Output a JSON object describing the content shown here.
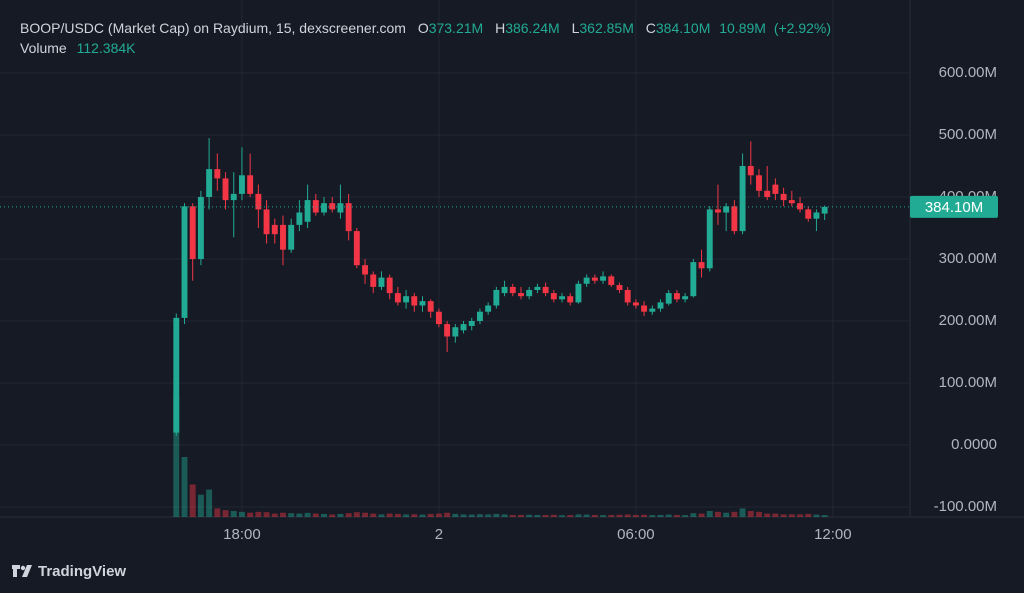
{
  "chart_data": {
    "type": "candlestick",
    "title": "BOOP/USDC (Market Cap) on Raydium, 15, dexscreener.com",
    "legend": {
      "open": {
        "key": "O",
        "value": 373210000.0,
        "label": "373.21M"
      },
      "high": {
        "key": "H",
        "value": 386240000.0,
        "label": "386.24M"
      },
      "low": {
        "key": "L",
        "value": 362850000.0,
        "label": "362.85M"
      },
      "close": {
        "key": "C",
        "value": 384100000.0,
        "label": "384.10M"
      },
      "change": {
        "value": 10890000.0,
        "label": "10.89M"
      },
      "change_percent": {
        "value": 2.92,
        "label": "(+2.92%)"
      }
    },
    "volume_legend": {
      "name": "Volume",
      "value": 112384,
      "label": "112.384K"
    },
    "last_price": {
      "value": 384100000.0,
      "label": "384.10M"
    },
    "x": [
      16,
      16.25,
      16.5,
      16.75,
      17,
      17.25,
      17.5,
      17.75,
      18,
      18.25,
      18.5,
      18.75,
      19,
      19.25,
      19.5,
      19.75,
      20,
      20.25,
      20.5,
      20.75,
      21,
      21.25,
      21.5,
      21.75,
      22,
      22.25,
      22.5,
      22.75,
      23,
      23.25,
      23.5,
      23.75,
      24,
      24.25,
      24.5,
      24.75,
      25,
      25.25,
      25.5,
      25.75,
      26,
      26.25,
      26.5,
      26.75,
      27,
      27.25,
      27.5,
      27.75,
      28,
      28.25,
      28.5,
      28.75,
      29,
      29.25,
      29.5,
      29.75,
      30,
      30.25,
      30.5,
      30.75,
      31,
      31.25,
      31.5,
      31.75,
      32,
      32.25,
      32.5,
      32.75,
      33,
      33.25,
      33.5,
      33.75,
      34,
      34.25,
      34.5,
      34.75,
      35,
      35.25,
      35.5,
      35.75
    ],
    "open": [
      20000000.0,
      205000000.0,
      385000000.0,
      300000000.0,
      400000000.0,
      445000000.0,
      430000000.0,
      395000000.0,
      405000000.0,
      435000000.0,
      405000000.0,
      380000000.0,
      355000000.0,
      355000000.0,
      315000000.0,
      355000000.0,
      360000000.0,
      395000000.0,
      375000000.0,
      390000000.0,
      375000000.0,
      390000000.0,
      345000000.0,
      290000000.0,
      275000000.0,
      255000000.0,
      270000000.0,
      245000000.0,
      230000000.0,
      240000000.0,
      225000000.0,
      232000000.0,
      215000000.0,
      195000000.0,
      175000000.0,
      185000000.0,
      192000000.0,
      200000000.0,
      215000000.0,
      225000000.0,
      245000000.0,
      255000000.0,
      245000000.0,
      240000000.0,
      250000000.0,
      255000000.0,
      245000000.0,
      235000000.0,
      240000000.0,
      230000000.0,
      260000000.0,
      270000000.0,
      265000000.0,
      272000000.0,
      258000000.0,
      250000000.0,
      230000000.0,
      225000000.0,
      215000000.0,
      220000000.0,
      228000000.0,
      245000000.0,
      235000000.0,
      240000000.0,
      295000000.0,
      285000000.0,
      380000000.0,
      375000000.0,
      385000000.0,
      345000000.0,
      450000000.0,
      435000000.0,
      410000000.0,
      420000000.0,
      405000000.0,
      395000000.0,
      390000000.0,
      380000000.0,
      365000000.0,
      373210000.0
    ],
    "high": [
      212000000.0,
      390000000.0,
      390000000.0,
      410000000.0,
      495000000.0,
      470000000.0,
      440000000.0,
      440000000.0,
      480000000.0,
      470000000.0,
      420000000.0,
      395000000.0,
      365000000.0,
      370000000.0,
      365000000.0,
      395000000.0,
      420000000.0,
      405000000.0,
      400000000.0,
      400000000.0,
      420000000.0,
      405000000.0,
      350000000.0,
      300000000.0,
      280000000.0,
      280000000.0,
      275000000.0,
      255000000.0,
      250000000.0,
      245000000.0,
      240000000.0,
      235000000.0,
      220000000.0,
      200000000.0,
      195000000.0,
      200000000.0,
      205000000.0,
      220000000.0,
      230000000.0,
      255000000.0,
      265000000.0,
      260000000.0,
      255000000.0,
      255000000.0,
      260000000.0,
      262000000.0,
      250000000.0,
      245000000.0,
      245000000.0,
      265000000.0,
      275000000.0,
      275000000.0,
      280000000.0,
      275000000.0,
      262000000.0,
      255000000.0,
      235000000.0,
      232000000.0,
      225000000.0,
      235000000.0,
      250000000.0,
      250000000.0,
      245000000.0,
      300000000.0,
      315000000.0,
      385000000.0,
      420000000.0,
      390000000.0,
      395000000.0,
      470000000.0,
      490000000.0,
      445000000.0,
      450000000.0,
      430000000.0,
      415000000.0,
      410000000.0,
      400000000.0,
      385000000.0,
      380000000.0,
      386240000.0
    ],
    "low": [
      15000000.0,
      195000000.0,
      265000000.0,
      290000000.0,
      380000000.0,
      410000000.0,
      380000000.0,
      335000000.0,
      395000000.0,
      400000000.0,
      350000000.0,
      325000000.0,
      325000000.0,
      290000000.0,
      310000000.0,
      345000000.0,
      350000000.0,
      370000000.0,
      370000000.0,
      375000000.0,
      365000000.0,
      330000000.0,
      285000000.0,
      260000000.0,
      245000000.0,
      250000000.0,
      235000000.0,
      225000000.0,
      220000000.0,
      215000000.0,
      215000000.0,
      205000000.0,
      190000000.0,
      150000000.0,
      165000000.0,
      180000000.0,
      185000000.0,
      195000000.0,
      210000000.0,
      220000000.0,
      240000000.0,
      240000000.0,
      235000000.0,
      235000000.0,
      245000000.0,
      240000000.0,
      230000000.0,
      230000000.0,
      225000000.0,
      228000000.0,
      255000000.0,
      260000000.0,
      260000000.0,
      255000000.0,
      245000000.0,
      225000000.0,
      220000000.0,
      208000000.0,
      210000000.0,
      215000000.0,
      225000000.0,
      230000000.0,
      230000000.0,
      238000000.0,
      270000000.0,
      280000000.0,
      355000000.0,
      345000000.0,
      340000000.0,
      340000000.0,
      420000000.0,
      400000000.0,
      395000000.0,
      395000000.0,
      385000000.0,
      385000000.0,
      375000000.0,
      360000000.0,
      345000000.0,
      362850000.0
    ],
    "close": [
      205000000.0,
      385000000.0,
      300000000.0,
      400000000.0,
      445000000.0,
      430000000.0,
      395000000.0,
      405000000.0,
      435000000.0,
      405000000.0,
      380000000.0,
      340000000.0,
      340000000.0,
      315000000.0,
      355000000.0,
      375000000.0,
      395000000.0,
      375000000.0,
      390000000.0,
      380000000.0,
      390000000.0,
      345000000.0,
      290000000.0,
      275000000.0,
      255000000.0,
      270000000.0,
      245000000.0,
      230000000.0,
      240000000.0,
      225000000.0,
      232000000.0,
      215000000.0,
      195000000.0,
      175000000.0,
      190000000.0,
      195000000.0,
      200000000.0,
      215000000.0,
      225000000.0,
      250000000.0,
      255000000.0,
      245000000.0,
      240000000.0,
      250000000.0,
      255000000.0,
      245000000.0,
      235000000.0,
      240000000.0,
      230000000.0,
      260000000.0,
      270000000.0,
      265000000.0,
      272000000.0,
      258000000.0,
      250000000.0,
      230000000.0,
      225000000.0,
      215000000.0,
      220000000.0,
      230000000.0,
      245000000.0,
      235000000.0,
      240000000.0,
      295000000.0,
      285000000.0,
      380000000.0,
      375000000.0,
      385000000.0,
      345000000.0,
      450000000.0,
      435000000.0,
      410000000.0,
      400000000.0,
      405000000.0,
      395000000.0,
      390000000.0,
      380000000.0,
      365000000.0,
      375000000.0,
      384100000.0
    ],
    "volume": {
      "name": "Volume",
      "values": [
        7000000.0,
        3500000.0,
        1900000.0,
        1300000.0,
        1600000.0,
        500000.0,
        400000.0,
        350000.0,
        300000.0,
        250000.0,
        300000.0,
        280000.0,
        200000.0,
        250000.0,
        220000.0,
        200000.0,
        240000.0,
        200000.0,
        180000.0,
        150000.0,
        180000.0,
        220000.0,
        280000.0,
        250000.0,
        200000.0,
        150000.0,
        200000.0,
        180000.0,
        150000.0,
        160000.0,
        140000.0,
        180000.0,
        200000.0,
        250000.0,
        180000.0,
        150000.0,
        140000.0,
        160000.0,
        150000.0,
        180000.0,
        150000.0,
        120000.0,
        120000.0,
        130000.0,
        120000.0,
        120000.0,
        130000.0,
        100000.0,
        110000.0,
        150000.0,
        140000.0,
        120000.0,
        110000.0,
        120000.0,
        130000.0,
        150000.0,
        120000.0,
        130000.0,
        110000.0,
        120000.0,
        140000.0,
        120000.0,
        110000.0,
        220000.0,
        200000.0,
        350000.0,
        300000.0,
        250000.0,
        300000.0,
        500000.0,
        350000.0,
        300000.0,
        200000.0,
        200000.0,
        150000.0,
        160000.0,
        150000.0,
        180000.0,
        140000.0,
        112384
      ]
    },
    "up_color": "#22ab94",
    "down_color": "#f23645",
    "xlim": [
      10.63,
      38.35
    ],
    "ylim": [
      -116100000.0,
      717700000.0
    ],
    "xticks": [
      {
        "value": 18,
        "label": "18:00"
      },
      {
        "value": 24,
        "label": "2"
      },
      {
        "value": 30,
        "label": "06:00"
      },
      {
        "value": 36,
        "label": "12:00"
      }
    ],
    "yticks": [
      {
        "value": -100000000.0,
        "label": "-100.00M"
      },
      {
        "value": 0,
        "label": "0.0000"
      },
      {
        "value": 100000000.0,
        "label": "100.00M"
      },
      {
        "value": 200000000.0,
        "label": "200.00M"
      },
      {
        "value": 300000000.0,
        "label": "300.00M"
      },
      {
        "value": 400000000.0,
        "label": "400.00M"
      },
      {
        "value": 500000000.0,
        "label": "500.00M"
      },
      {
        "value": 600000000.0,
        "label": "600.00M"
      }
    ],
    "grid": true,
    "brand": "TradingView"
  }
}
